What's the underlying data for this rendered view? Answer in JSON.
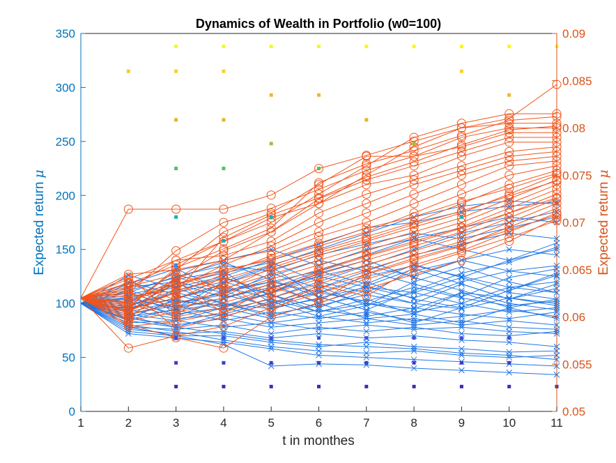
{
  "chart_data": {
    "type": "line",
    "title": "Dynamics of Wealth in Portfolio (w0=100)",
    "xlabel": "t in monthes",
    "ylabel_left": "Expected return",
    "ylabel_left_symbol": "μ",
    "ylabel_right": "Expected return",
    "ylabel_right_symbol": "μ",
    "x": [
      1,
      2,
      3,
      4,
      5,
      6,
      7,
      8,
      9,
      10,
      11
    ],
    "xlim": [
      1,
      11
    ],
    "ylim_left": [
      0,
      350
    ],
    "ylim_right": [
      0.05,
      0.09
    ],
    "yticks_left": [
      0,
      50,
      100,
      150,
      200,
      250,
      300,
      350
    ],
    "yticks_right": [
      "0.05",
      "0.055",
      "0.06",
      "0.065",
      "0.07",
      "0.075",
      "0.08",
      "0.085",
      "0.09"
    ],
    "grid": false,
    "colors": {
      "left_axis": "#0072BD",
      "right_axis": "#D95319",
      "blue_series": "#1F77E6",
      "orange_series": "#F2541B"
    },
    "wealth_paths": [
      [
        100,
        95,
        110,
        120,
        135,
        150,
        165,
        180,
        190,
        195,
        192
      ],
      [
        100,
        105,
        115,
        125,
        140,
        155,
        170,
        175,
        185,
        190,
        194
      ],
      [
        100,
        90,
        100,
        110,
        120,
        130,
        145,
        160,
        170,
        180,
        175
      ],
      [
        100,
        110,
        125,
        135,
        130,
        145,
        155,
        165,
        160,
        170,
        180
      ],
      [
        100,
        85,
        95,
        105,
        115,
        125,
        135,
        150,
        165,
        175,
        185
      ],
      [
        100,
        115,
        120,
        110,
        125,
        140,
        130,
        145,
        155,
        165,
        160
      ],
      [
        100,
        100,
        130,
        140,
        150,
        135,
        150,
        160,
        150,
        140,
        150
      ],
      [
        100,
        95,
        105,
        115,
        105,
        120,
        135,
        125,
        140,
        150,
        145
      ],
      [
        100,
        108,
        118,
        128,
        138,
        120,
        110,
        130,
        140,
        130,
        135
      ],
      [
        100,
        92,
        102,
        98,
        110,
        125,
        115,
        105,
        120,
        130,
        125
      ],
      [
        100,
        104,
        96,
        112,
        120,
        110,
        125,
        135,
        125,
        115,
        120
      ],
      [
        100,
        98,
        110,
        100,
        95,
        105,
        115,
        110,
        100,
        115,
        110
      ],
      [
        100,
        112,
        100,
        108,
        98,
        112,
        100,
        95,
        110,
        105,
        100
      ],
      [
        100,
        90,
        98,
        88,
        100,
        110,
        102,
        115,
        105,
        98,
        102
      ],
      [
        100,
        106,
        94,
        100,
        90,
        98,
        108,
        100,
        95,
        105,
        98
      ],
      [
        100,
        96,
        104,
        94,
        104,
        92,
        100,
        92,
        100,
        92,
        96
      ],
      [
        100,
        102,
        90,
        96,
        86,
        94,
        88,
        96,
        90,
        86,
        92
      ],
      [
        100,
        88,
        94,
        84,
        92,
        86,
        92,
        84,
        88,
        94,
        88
      ],
      [
        100,
        94,
        86,
        90,
        82,
        88,
        82,
        86,
        80,
        84,
        80
      ],
      [
        100,
        86,
        80,
        86,
        78,
        82,
        86,
        80,
        84,
        78,
        76
      ],
      [
        100,
        82,
        84,
        78,
        82,
        76,
        80,
        76,
        78,
        74,
        72
      ],
      [
        100,
        78,
        76,
        80,
        72,
        78,
        74,
        78,
        72,
        70,
        74
      ],
      [
        100,
        76,
        72,
        74,
        68,
        72,
        68,
        70,
        66,
        64,
        60
      ],
      [
        100,
        74,
        70,
        70,
        64,
        60,
        64,
        60,
        58,
        55,
        56
      ],
      [
        100,
        80,
        74,
        66,
        60,
        56,
        54,
        56,
        52,
        50,
        52
      ],
      [
        100,
        84,
        78,
        72,
        66,
        62,
        60,
        58,
        54,
        52,
        48
      ],
      [
        100,
        72,
        68,
        64,
        58,
        52,
        50,
        48,
        46,
        44,
        42
      ],
      [
        100,
        78,
        70,
        62,
        42,
        44,
        43,
        40,
        38,
        36,
        34
      ],
      [
        100,
        96,
        118,
        106,
        128,
        114,
        130,
        118,
        106,
        124,
        132
      ],
      [
        100,
        110,
        96,
        120,
        108,
        96,
        112,
        100,
        118,
        104,
        118
      ],
      [
        100,
        120,
        108,
        96,
        114,
        130,
        118,
        136,
        124,
        110,
        104
      ],
      [
        100,
        92,
        122,
        130,
        100,
        116,
        98,
        120,
        134,
        120,
        110
      ],
      [
        100,
        118,
        132,
        112,
        96,
        104,
        120,
        104,
        96,
        112,
        128
      ],
      [
        100,
        86,
        104,
        118,
        134,
        106,
        94,
        112,
        128,
        138,
        152
      ],
      [
        100,
        104,
        88,
        104,
        118,
        100,
        86,
        90,
        110,
        96,
        86
      ],
      [
        100,
        90,
        84,
        96,
        110,
        128,
        140,
        124,
        112,
        100,
        94
      ],
      [
        100,
        126,
        114,
        100,
        88,
        100,
        116,
        132,
        118,
        104,
        114
      ],
      [
        100,
        98,
        112,
        124,
        108,
        92,
        104,
        90,
        82,
        96,
        104
      ],
      [
        100,
        112,
        124,
        138,
        122,
        106,
        94,
        82,
        96,
        112,
        126
      ],
      [
        100,
        88,
        78,
        90,
        102,
        88,
        98,
        110,
        124,
        140,
        156
      ]
    ],
    "return_paths": [
      [
        0.062,
        0.0615,
        0.064,
        0.066,
        0.069,
        0.072,
        0.075,
        0.078,
        0.08,
        0.081,
        0.0846
      ],
      [
        0.062,
        0.063,
        0.066,
        0.068,
        0.07,
        0.073,
        0.076,
        0.079,
        0.0805,
        0.0815,
        0.0815
      ],
      [
        0.062,
        0.0714,
        0.0714,
        0.0714,
        0.0729,
        0.0757,
        0.0771,
        0.0786,
        0.08,
        0.0805,
        0.0805
      ],
      [
        0.062,
        0.061,
        0.065,
        0.069,
        0.071,
        0.074,
        0.077,
        0.077,
        0.079,
        0.08,
        0.08
      ],
      [
        0.062,
        0.0625,
        0.067,
        0.07,
        0.0715,
        0.0735,
        0.0755,
        0.077,
        0.078,
        0.0795,
        0.0795
      ],
      [
        0.062,
        0.0605,
        0.064,
        0.067,
        0.069,
        0.0725,
        0.0745,
        0.076,
        0.0775,
        0.079,
        0.079
      ],
      [
        0.062,
        0.0635,
        0.0655,
        0.068,
        0.0705,
        0.072,
        0.074,
        0.075,
        0.077,
        0.0785,
        0.0785
      ],
      [
        0.062,
        0.064,
        0.066,
        0.0665,
        0.068,
        0.071,
        0.073,
        0.0745,
        0.076,
        0.0775,
        0.078
      ],
      [
        0.062,
        0.06,
        0.063,
        0.0655,
        0.0675,
        0.07,
        0.072,
        0.074,
        0.0755,
        0.077,
        0.0775
      ],
      [
        0.062,
        0.0645,
        0.065,
        0.066,
        0.067,
        0.069,
        0.071,
        0.073,
        0.075,
        0.0765,
        0.077
      ],
      [
        0.062,
        0.0612,
        0.0625,
        0.0645,
        0.0665,
        0.0685,
        0.07,
        0.072,
        0.074,
        0.076,
        0.0765
      ],
      [
        0.062,
        0.0618,
        0.0635,
        0.065,
        0.066,
        0.0675,
        0.069,
        0.071,
        0.073,
        0.075,
        0.076
      ],
      [
        0.062,
        0.0622,
        0.0628,
        0.064,
        0.0655,
        0.067,
        0.0685,
        0.07,
        0.072,
        0.074,
        0.0755
      ],
      [
        0.062,
        0.0608,
        0.062,
        0.0635,
        0.065,
        0.0665,
        0.068,
        0.0695,
        0.071,
        0.073,
        0.075
      ],
      [
        0.062,
        0.0632,
        0.0645,
        0.063,
        0.0645,
        0.066,
        0.0675,
        0.069,
        0.0705,
        0.0725,
        0.0745
      ],
      [
        0.062,
        0.0602,
        0.0615,
        0.0625,
        0.064,
        0.0655,
        0.067,
        0.0685,
        0.07,
        0.072,
        0.074
      ],
      [
        0.062,
        0.0626,
        0.061,
        0.062,
        0.0635,
        0.065,
        0.0665,
        0.068,
        0.0695,
        0.0715,
        0.0735
      ],
      [
        0.062,
        0.0596,
        0.0605,
        0.0615,
        0.063,
        0.0645,
        0.066,
        0.0675,
        0.069,
        0.071,
        0.073
      ],
      [
        0.062,
        0.0614,
        0.06,
        0.061,
        0.0625,
        0.064,
        0.0655,
        0.067,
        0.0685,
        0.0705,
        0.0725
      ],
      [
        0.062,
        0.059,
        0.0595,
        0.0605,
        0.062,
        0.0635,
        0.065,
        0.0665,
        0.068,
        0.07,
        0.072
      ],
      [
        0.062,
        0.0628,
        0.0588,
        0.06,
        0.0615,
        0.063,
        0.0645,
        0.066,
        0.0675,
        0.0695,
        0.0715
      ],
      [
        0.062,
        0.0567,
        0.058,
        0.059,
        0.061,
        0.0625,
        0.064,
        0.0655,
        0.067,
        0.069,
        0.071
      ],
      [
        0.062,
        0.0592,
        0.0578,
        0.0567,
        0.06,
        0.0615,
        0.063,
        0.0645,
        0.066,
        0.068,
        0.0705
      ],
      [
        0.062,
        0.0616,
        0.0634,
        0.0648,
        0.0662,
        0.0678,
        0.0694,
        0.0706,
        0.0722,
        0.0736,
        0.0752
      ],
      [
        0.062,
        0.0604,
        0.0642,
        0.0628,
        0.0652,
        0.0668,
        0.0682,
        0.0698,
        0.0712,
        0.0728,
        0.0744
      ],
      [
        0.062,
        0.0636,
        0.0618,
        0.0642,
        0.0626,
        0.0648,
        0.0664,
        0.0678,
        0.0694,
        0.071,
        0.0726
      ],
      [
        0.062,
        0.0598,
        0.0638,
        0.0604,
        0.0632,
        0.0616,
        0.0646,
        0.0662,
        0.0676,
        0.0692,
        0.0708
      ],
      [
        0.062,
        0.0642,
        0.0602,
        0.0636,
        0.0606,
        0.0634,
        0.0622,
        0.0652,
        0.0668,
        0.0684,
        0.0702
      ],
      [
        0.062,
        0.061,
        0.0652,
        0.0672,
        0.0694,
        0.0742,
        0.0762,
        0.0776,
        0.0792,
        0.0808,
        0.0812
      ],
      [
        0.062,
        0.0606,
        0.0626,
        0.0684,
        0.0708,
        0.0726,
        0.0748,
        0.0764,
        0.0782,
        0.0798,
        0.0802
      ]
    ],
    "scatter_markers": [
      {
        "x": 2,
        "y": 315,
        "color": "#F9C92A"
      },
      {
        "x": 3,
        "y": 338,
        "color": "#F9FB0E"
      },
      {
        "x": 3,
        "y": 315,
        "color": "#F9D02A"
      },
      {
        "x": 3,
        "y": 270,
        "color": "#E2B628"
      },
      {
        "x": 3,
        "y": 225,
        "color": "#4FC16B"
      },
      {
        "x": 3,
        "y": 180,
        "color": "#1BB1A8"
      },
      {
        "x": 3,
        "y": 135,
        "color": "#2C8EE6"
      },
      {
        "x": 3,
        "y": 68,
        "color": "#3E4FE0"
      },
      {
        "x": 3,
        "y": 45,
        "color": "#3D3BCF"
      },
      {
        "x": 3,
        "y": 23,
        "color": "#3A2DB8"
      },
      {
        "x": 4,
        "y": 338,
        "color": "#F9FB0E"
      },
      {
        "x": 4,
        "y": 315,
        "color": "#F9D02A"
      },
      {
        "x": 4,
        "y": 270,
        "color": "#E2B628"
      },
      {
        "x": 4,
        "y": 225,
        "color": "#4FC16B"
      },
      {
        "x": 4,
        "y": 158,
        "color": "#19A9B8"
      },
      {
        "x": 4,
        "y": 68,
        "color": "#3E4FE0"
      },
      {
        "x": 4,
        "y": 45,
        "color": "#3D3BCF"
      },
      {
        "x": 4,
        "y": 23,
        "color": "#3A2DB8"
      },
      {
        "x": 5,
        "y": 338,
        "color": "#F9FB0E"
      },
      {
        "x": 5,
        "y": 293,
        "color": "#EFB82E"
      },
      {
        "x": 5,
        "y": 248,
        "color": "#A6BE36"
      },
      {
        "x": 5,
        "y": 180,
        "color": "#1BB1A8"
      },
      {
        "x": 5,
        "y": 68,
        "color": "#3E4FE0"
      },
      {
        "x": 5,
        "y": 45,
        "color": "#3D3BCF"
      },
      {
        "x": 5,
        "y": 23,
        "color": "#3A2DB8"
      },
      {
        "x": 6,
        "y": 338,
        "color": "#F9FB0E"
      },
      {
        "x": 6,
        "y": 293,
        "color": "#EFB82E"
      },
      {
        "x": 6,
        "y": 225,
        "color": "#4FC16B"
      },
      {
        "x": 6,
        "y": 68,
        "color": "#3E4FE0"
      },
      {
        "x": 6,
        "y": 45,
        "color": "#3D3BCF"
      },
      {
        "x": 6,
        "y": 23,
        "color": "#3A2DB8"
      },
      {
        "x": 7,
        "y": 338,
        "color": "#F9FB0E"
      },
      {
        "x": 7,
        "y": 270,
        "color": "#E2B628"
      },
      {
        "x": 7,
        "y": 90,
        "color": "#3F66E8"
      },
      {
        "x": 7,
        "y": 68,
        "color": "#3E4FE0"
      },
      {
        "x": 7,
        "y": 45,
        "color": "#3D3BCF"
      },
      {
        "x": 7,
        "y": 23,
        "color": "#3A2DB8"
      },
      {
        "x": 8,
        "y": 338,
        "color": "#F9FB0E"
      },
      {
        "x": 8,
        "y": 248,
        "color": "#A6BE36"
      },
      {
        "x": 8,
        "y": 68,
        "color": "#3E4FE0"
      },
      {
        "x": 8,
        "y": 45,
        "color": "#3D3BCF"
      },
      {
        "x": 8,
        "y": 23,
        "color": "#3A2DB8"
      },
      {
        "x": 9,
        "y": 338,
        "color": "#F9FB0E"
      },
      {
        "x": 9,
        "y": 315,
        "color": "#F9D02A"
      },
      {
        "x": 9,
        "y": 180,
        "color": "#1BB1A8"
      },
      {
        "x": 9,
        "y": 68,
        "color": "#3E4FE0"
      },
      {
        "x": 9,
        "y": 45,
        "color": "#3D3BCF"
      },
      {
        "x": 9,
        "y": 23,
        "color": "#3A2DB8"
      },
      {
        "x": 10,
        "y": 338,
        "color": "#F9FB0E"
      },
      {
        "x": 10,
        "y": 293,
        "color": "#EFB82E"
      },
      {
        "x": 10,
        "y": 68,
        "color": "#3E4FE0"
      },
      {
        "x": 10,
        "y": 45,
        "color": "#3D3BCF"
      },
      {
        "x": 10,
        "y": 23,
        "color": "#3A2DB8"
      },
      {
        "x": 11,
        "y": 338,
        "color": "#F9FB0E"
      },
      {
        "x": 11,
        "y": 23,
        "color": "#3A2DB8"
      }
    ]
  }
}
